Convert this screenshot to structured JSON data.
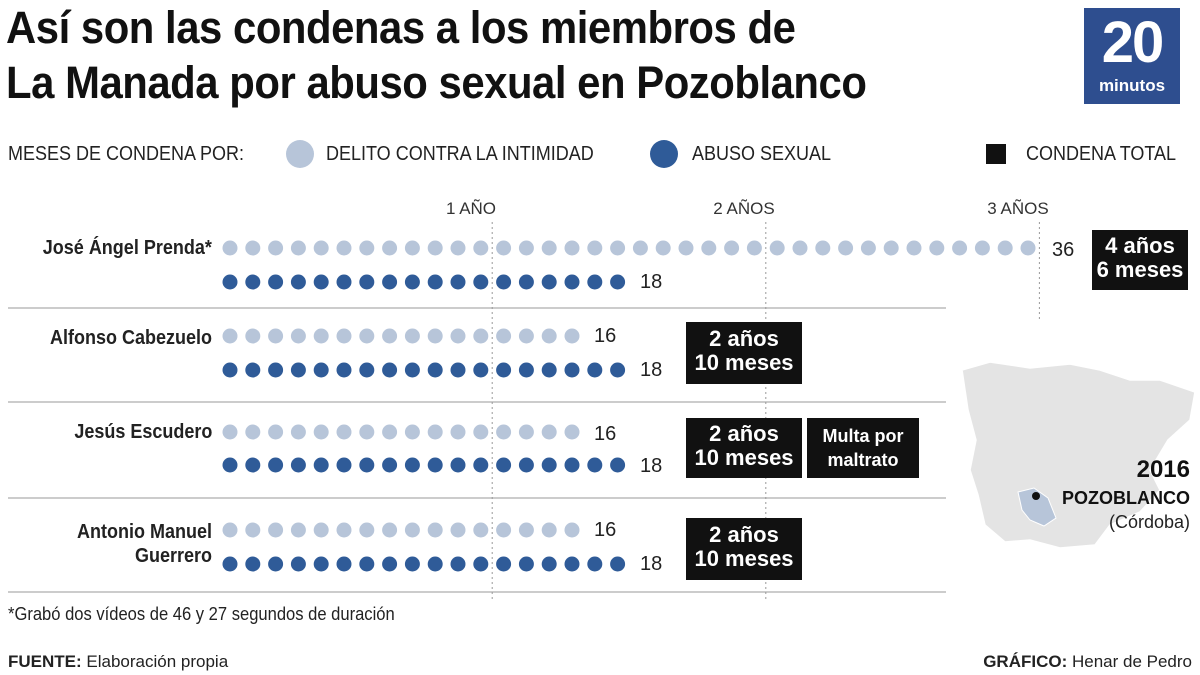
{
  "title": {
    "line1": "Así son las condenas a los miembros de",
    "line2": "La Manada por abuso sexual en Pozoblanco"
  },
  "logo": {
    "number": "20",
    "text": "minutos",
    "color": "#2e4e8f"
  },
  "legend": {
    "prefix": "MESES DE CONDENA POR:",
    "intimidad": "DELITO CONTRA LA INTIMIDAD",
    "abuso": "ABUSO SEXUAL",
    "total": "CONDENA TOTAL"
  },
  "colors": {
    "intimidad": "#b7c5d9",
    "abuso": "#2f5b98",
    "total": "#111111"
  },
  "chart_data": {
    "type": "dot-plot",
    "unit": "meses",
    "x_ticks": [
      {
        "months": 12,
        "label": "1 AÑO"
      },
      {
        "months": 24,
        "label": "2 AÑOS"
      },
      {
        "months": 36,
        "label": "3 AÑOS"
      }
    ],
    "series_names": [
      "DELITO CONTRA LA INTIMIDAD",
      "ABUSO SEXUAL"
    ],
    "rows": [
      {
        "name": "José Ángel Prenda*",
        "intimidad": 36,
        "abuso": 18,
        "total": "4 años\n6 meses",
        "extra": ""
      },
      {
        "name": "Alfonso Cabezuelo",
        "intimidad": 16,
        "abuso": 18,
        "total": "2 años\n10 meses",
        "extra": ""
      },
      {
        "name": "Jesús Escudero",
        "intimidad": 16,
        "abuso": 18,
        "total": "2 años\n10 meses",
        "extra": "Multa por\nmaltrato"
      },
      {
        "name": "Antonio Manuel\nGuerrero",
        "intimidad": 16,
        "abuso": 18,
        "total": "2 años\n10 meses",
        "extra": ""
      }
    ]
  },
  "map": {
    "year": "2016",
    "place": "POZOBLANCO",
    "province": "(Córdoba)"
  },
  "footnote": "*Grabó dos vídeos de 46 y 27 segundos de duración",
  "credits": {
    "source_label": "FUENTE:",
    "source": "Elaboración propia",
    "graphic_label": "GRÁFICO:",
    "graphic": "Henar de Pedro"
  }
}
